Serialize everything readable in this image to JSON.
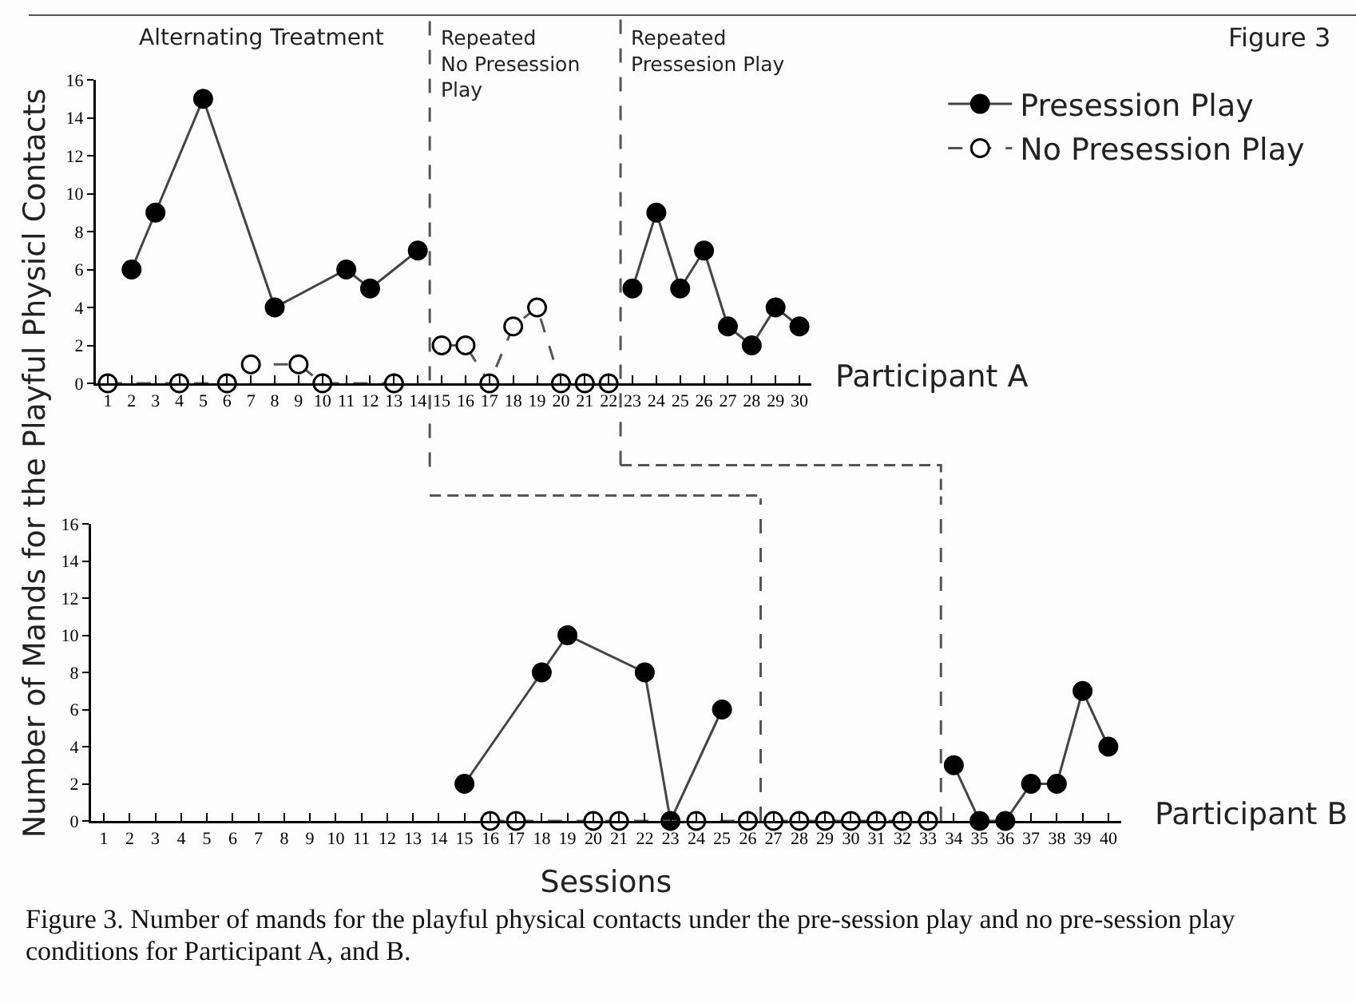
{
  "chart_data": [
    {
      "type": "line",
      "ylabel": "Number of Mands for the Playful Physicl Contacts",
      "annotations": [
        "Participant A",
        "Alternating Treatment",
        "Repeated\nNo Presession\nPlay",
        "Repeated\nPressesion Play",
        "Figure 3"
      ],
      "xlim": [
        0.5,
        30.5
      ],
      "xticks": [
        1,
        2,
        3,
        4,
        5,
        6,
        7,
        8,
        9,
        10,
        11,
        12,
        13,
        14,
        15,
        16,
        17,
        18,
        19,
        20,
        21,
        22,
        23,
        24,
        25,
        26,
        27,
        28,
        29,
        30
      ],
      "ylim": [
        0,
        16
      ],
      "yticks": [
        0,
        2,
        4,
        6,
        8,
        10,
        12,
        14,
        16
      ],
      "legend": "top right",
      "marker": "circle",
      "ref_lines": [
        {
          "axis": "x",
          "value": 14.5,
          "line_style": "dashed"
        },
        {
          "axis": "x",
          "value": 22.5,
          "line_style": "dashed"
        }
      ],
      "series": [
        {
          "name": "Presession Play",
          "color": "#000000",
          "line_style": "solid",
          "x": [
            2,
            3,
            5,
            8,
            11,
            12,
            14
          ],
          "values": [
            6,
            9,
            15,
            4,
            6,
            5,
            7
          ]
        },
        {
          "color": "#000000",
          "line_style": "solid",
          "x": [
            23,
            24,
            25,
            26,
            27,
            28,
            29,
            30
          ],
          "values": [
            5,
            9,
            5,
            7,
            3,
            2,
            4,
            3
          ]
        },
        {
          "name": "No Presession Play",
          "color": "#ffffff",
          "line_style": "dashed",
          "x": [
            1,
            4,
            6,
            7,
            9,
            10,
            13
          ],
          "values": [
            0,
            0,
            0,
            1,
            1,
            0,
            0
          ]
        },
        {
          "color": "#ffffff",
          "line_style": "dashed",
          "x": [
            15,
            16,
            17,
            18,
            19,
            20,
            21,
            22
          ],
          "values": [
            2,
            2,
            0,
            3,
            4,
            0,
            0,
            0
          ]
        }
      ]
    },
    {
      "type": "line",
      "xlabel": "Sessions",
      "annotations": [
        "Participant B",
        "Figure 3. Number of mands for the playful physical contacts under the pre-session play and no pre-session play conditions for Participant A, and B."
      ],
      "xlim": [
        0.5,
        40.5
      ],
      "xticks": [
        1,
        2,
        3,
        4,
        5,
        6,
        7,
        8,
        9,
        10,
        11,
        12,
        13,
        14,
        15,
        16,
        17,
        18,
        19,
        20,
        21,
        22,
        23,
        24,
        25,
        26,
        27,
        28,
        29,
        30,
        31,
        32,
        33,
        34,
        35,
        36,
        37,
        38,
        39,
        40
      ],
      "ylim": [
        0,
        16
      ],
      "yticks": [
        0,
        2,
        4,
        6,
        8,
        10,
        12,
        14,
        16
      ],
      "marker": "circle",
      "ref_lines": [
        {
          "axis": "x",
          "value": 26.5,
          "line_style": "dashed"
        },
        {
          "axis": "x",
          "value": 33.5,
          "line_style": "dashed"
        }
      ],
      "series": [
        {
          "color": "#000000",
          "line_style": "solid",
          "x": [
            15,
            18,
            19,
            22,
            23,
            25
          ],
          "values": [
            2,
            8,
            10,
            8,
            0,
            6
          ]
        },
        {
          "color": "#000000",
          "line_style": "solid",
          "x": [
            34,
            35,
            36,
            37,
            38,
            39,
            40
          ],
          "values": [
            3,
            0,
            0,
            2,
            2,
            7,
            4
          ]
        },
        {
          "color": "#ffffff",
          "line_style": "dashed",
          "x": [
            16,
            17,
            20,
            21,
            24,
            26
          ],
          "values": [
            0,
            0,
            0,
            0,
            0,
            0
          ]
        },
        {
          "color": "#ffffff",
          "line_style": "dashed",
          "x": [
            27,
            28,
            29,
            30,
            31,
            32,
            33
          ],
          "values": [
            0,
            0,
            0,
            0,
            0,
            0,
            0
          ]
        }
      ]
    }
  ]
}
